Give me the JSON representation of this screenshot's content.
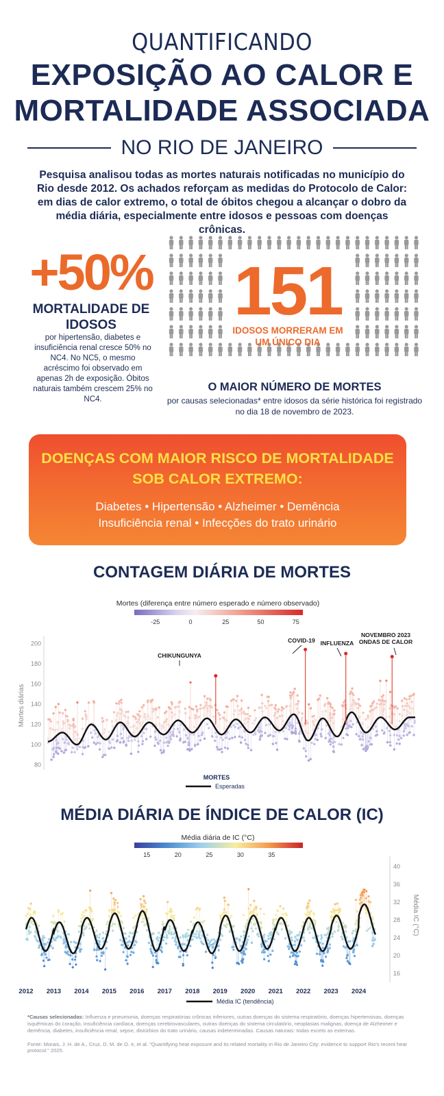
{
  "header": {
    "line1": "QUANTIFICANDO",
    "line2a": "EXPOSIÇÃO AO CALOR E",
    "line2b": "MORTALIDADE ASSOCIADA",
    "subtitle": "NO RIO DE JANEIRO"
  },
  "intro": "Pesquisa analisou todas as mortes naturais notificadas no município do Rio desde 2012. Os achados reforçam as medidas do Protocolo de Calor: em dias de calor extremo, o total de óbitos chegou a alcançar o dobro da média diária, especialmente entre idosos e pessoas com doenças crônicas.",
  "stat_elderly": {
    "value": "+50%",
    "title": "MORTALIDADE DE IDOSOS",
    "text": "por hipertensão, diabetes e insuficiência renal cresce 50% no NC4. No NC5, o mesmo acréscimo foi observado em apenas 2h de exposição. Óbitos naturais também crescem 25% no NC4."
  },
  "stat_day": {
    "value": "151",
    "label": "IDOSOS MORRERAM EM UM ÚNICO DIA",
    "title": "O MAIOR NÚMERO DE MORTES",
    "text": "por causas selecionadas* entre idosos da série histórica foi registrado no dia 18 de novembro de 2023."
  },
  "diseases": {
    "title": "DOENÇAS COM MAIOR RISCO DE MORTALIDADE SOB CALOR EXTREMO:",
    "line1": "Diabetes  •  Hipertensão  •  Alzheimer  •  Demência",
    "line2": "Insuficiência renal  •  Infecções do trato urinário"
  },
  "colors": {
    "navy": "#1c2b55",
    "orange": "#ec6a2c",
    "yellow": "#fde046",
    "person_icon": "#9a9a9a"
  },
  "chart_data": [
    {
      "type": "scatter",
      "title": "CONTAGEM DIÁRIA DE MORTES",
      "legend_title": "Mortes (diferença entre número esperado e número observado)",
      "color_scale_ticks": [
        -25,
        0,
        25,
        50,
        75
      ],
      "ylabel": "Mortes diárias",
      "ylim": [
        75,
        205
      ],
      "yticks": [
        80,
        100,
        120,
        140,
        160,
        180,
        200
      ],
      "x": [
        2012,
        2012.5,
        2013,
        2013.5,
        2014,
        2014.5,
        2015,
        2015.5,
        2016,
        2016.5,
        2017,
        2017.5,
        2018,
        2018.5,
        2019,
        2019.5,
        2020,
        2020.5,
        2021,
        2021.5,
        2022,
        2022.5,
        2023,
        2023.5,
        2024,
        2024.5
      ],
      "series": [
        {
          "name": "Esperadas",
          "values": [
            103,
            112,
            100,
            120,
            105,
            122,
            108,
            122,
            110,
            124,
            112,
            126,
            110,
            125,
            112,
            127,
            114,
            130,
            104,
            126,
            108,
            132,
            112,
            127,
            115,
            127
          ]
        }
      ],
      "annotations": [
        {
          "label": "CHIKUNGUNYA",
          "x": 2017.8,
          "y": 168
        },
        {
          "label": "COVID-19",
          "x": 2020.9,
          "y": 194
        },
        {
          "label": "INFLUENZA",
          "x": 2022.3,
          "y": 190
        },
        {
          "label": "NOVEMBRO 2023 ONDAS DE CALOR",
          "x": 2023.9,
          "y": 187
        }
      ],
      "legend": {
        "marks": "MORTES",
        "line": "Esperadas"
      }
    },
    {
      "type": "scatter",
      "title": "MÉDIA DIÁRIA DE ÍNDICE DE CALOR (IC)",
      "legend_title": "Média diária de IC (°C)",
      "color_scale_ticks": [
        15,
        20,
        25,
        30,
        35
      ],
      "ylabel": "Média IC (°C)",
      "ylim": [
        14,
        42
      ],
      "yticks": [
        16,
        20,
        24,
        28,
        32,
        36,
        40
      ],
      "x_ticks": [
        "2012",
        "2013",
        "2014",
        "2015",
        "2016",
        "2017",
        "2018",
        "2019",
        "2020",
        "2021",
        "2022",
        "2023",
        "2024"
      ],
      "series": [
        {
          "name": "Média IC (tendência)",
          "annual_peaks": [
            28.5,
            27.5,
            28.5,
            29.5,
            30,
            28,
            27.5,
            29,
            29,
            28.5,
            28.5,
            29,
            31.5
          ],
          "annual_troughs": [
            21,
            20.5,
            21.5,
            21.5,
            21,
            21,
            20.5,
            21,
            21.5,
            21,
            21,
            21.5,
            24
          ]
        }
      ],
      "legend": {
        "line": "Média IC (tendência)"
      }
    }
  ],
  "footnote_label": "*Causas selecionadas:",
  "footnote": "Influenza e pneumonia, doenças respiratórias crônicas inferiores, outras doenças do sistema respiratório, doenças hipertensivas, doenças isquêmicas do coração, insuficiência cardíaca, doenças cerebrovasculares, outras doenças do sistema circulatório, neoplasias malignas, doença de Alzheimer e demência, diabetes, insuficiência renal, sepse, distúrbios do trato urinário, causas indeterminadas. Causas naturais: todas exceto as externas.",
  "source": "Fonte: Morais, J. H. de A., Cruz, D. M. de O. e, et al. \"Quantifying heat exposure and its related mortality in Rio de Janeiro City: evidence to support Rio's recent heat protocol.\" 2025."
}
